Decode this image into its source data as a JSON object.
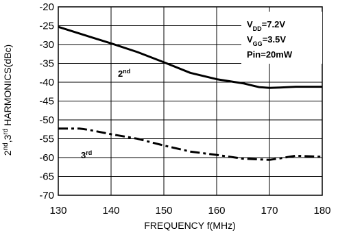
{
  "chart_data": {
    "type": "line",
    "xlabel": "FREQUENCY f(MHz)",
    "ylabel": "2nd,3rd HARMONICS(dBc)",
    "xlim": [
      130,
      180
    ],
    "ylim": [
      -70,
      -20
    ],
    "x_ticks": [
      130,
      140,
      150,
      160,
      170,
      180
    ],
    "y_ticks": [
      -20,
      -25,
      -30,
      -35,
      -40,
      -45,
      -50,
      -55,
      -60,
      -65,
      -70
    ],
    "grid": true,
    "conditions": {
      "vdd": "7.2V",
      "vgg": "3.5V",
      "pin": "Pin=20mW"
    },
    "series": [
      {
        "name": "2nd",
        "line_style": "solid",
        "color": "#000000",
        "x": [
          130,
          135,
          140,
          145,
          150,
          155,
          160,
          165,
          168,
          170,
          172,
          175,
          180
        ],
        "y": [
          -25.3,
          -27.5,
          -29.7,
          -32.0,
          -34.7,
          -37.5,
          -39.2,
          -40.3,
          -41.3,
          -41.5,
          -41.4,
          -41.2,
          -41.2
        ]
      },
      {
        "name": "3rd",
        "line_style": "dash-dot",
        "color": "#000000",
        "x": [
          130,
          134,
          136,
          140,
          145,
          150,
          155,
          160,
          165,
          170,
          172,
          175,
          180
        ],
        "y": [
          -52.3,
          -52.3,
          -52.7,
          -53.8,
          -55.0,
          -56.8,
          -58.4,
          -59.3,
          -60.3,
          -60.6,
          -60.2,
          -59.5,
          -59.8
        ]
      }
    ]
  }
}
